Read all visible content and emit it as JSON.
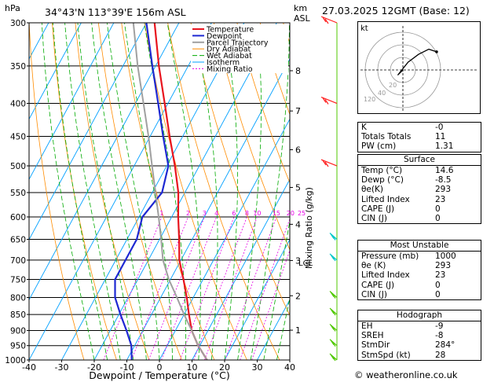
{
  "header": {
    "location": "34°43'N  113°39'E  156m  ASL",
    "datetime": "27.03.2025  12GMT  (Base: 12)",
    "units_left": "hPa",
    "units_km": "km",
    "units_asl": "ASL"
  },
  "legend": [
    "Temperature",
    "Dewpoint",
    "Parcel Trajectory",
    "Dry Adiabat",
    "Wet Adiabat",
    "Isotherm",
    "Mixing Ratio"
  ],
  "colors": {
    "temperature": "#e8141e",
    "dewpoint": "#1e28d2",
    "parcel": "#a0a0a0",
    "dry_adiabat": "#ff8c00",
    "wet_adiabat": "#00aa00",
    "isotherm": "#00a0ff",
    "mixing_ratio": "#e600e6",
    "wind_upper": "#ff2020",
    "wind_low": "#00c8c8",
    "wind_surface": "#50c800"
  },
  "chart_data": {
    "type": "line",
    "title": "Skew-T log-P sounding",
    "xlabel": "Dewpoint / Temperature (°C)",
    "ylabel": "hPa",
    "xlim": [
      -40,
      40
    ],
    "ylim": [
      1000,
      300
    ],
    "x_ticks": [
      -40,
      -30,
      -20,
      -10,
      0,
      10,
      20,
      30,
      40
    ],
    "pressure_levels": [
      300,
      350,
      400,
      450,
      500,
      550,
      600,
      650,
      700,
      750,
      800,
      850,
      900,
      950,
      1000
    ],
    "km_ticks": [
      {
        "label": "8",
        "p": 356
      },
      {
        "label": "7",
        "p": 411
      },
      {
        "label": "6",
        "p": 472
      },
      {
        "label": "5",
        "p": 540
      },
      {
        "label": "4",
        "p": 616
      },
      {
        "label": "3",
        "p": 701
      },
      {
        "label": "2",
        "p": 795
      },
      {
        "label": "1",
        "p": 899
      }
    ],
    "lcl_label": "LCL",
    "lcl_p": 706,
    "mixing_ratio_axis_label": "Mixing Ratio (g/kg)",
    "mixing_ratio_labels": [
      1,
      2,
      3,
      4,
      6,
      8,
      10,
      15,
      20,
      25
    ],
    "mixing_ratio_label_p": 600,
    "series": [
      {
        "name": "Temperature",
        "points": [
          [
            1000,
            14.6
          ],
          [
            950,
            9.5
          ],
          [
            900,
            5.0
          ],
          [
            850,
            1.5
          ],
          [
            800,
            -2.0
          ],
          [
            750,
            -6.0
          ],
          [
            700,
            -10.5
          ],
          [
            650,
            -14.0
          ],
          [
            600,
            -18.0
          ],
          [
            550,
            -22.0
          ],
          [
            500,
            -27.5
          ],
          [
            450,
            -34.0
          ],
          [
            400,
            -41.0
          ],
          [
            350,
            -49.0
          ],
          [
            300,
            -57.5
          ]
        ]
      },
      {
        "name": "Dewpoint",
        "points": [
          [
            1000,
            -8.5
          ],
          [
            950,
            -11.0
          ],
          [
            900,
            -15.0
          ],
          [
            850,
            -19.5
          ],
          [
            800,
            -24.0
          ],
          [
            750,
            -27.0
          ],
          [
            700,
            -27.0
          ],
          [
            650,
            -27.0
          ],
          [
            600,
            -29.0
          ],
          [
            550,
            -27.0
          ],
          [
            500,
            -29.5
          ],
          [
            450,
            -36.0
          ],
          [
            400,
            -43.0
          ],
          [
            350,
            -51.0
          ],
          [
            300,
            -60.0
          ]
        ]
      },
      {
        "name": "Parcel Trajectory",
        "points": [
          [
            1000,
            14.6
          ],
          [
            950,
            9.5
          ],
          [
            900,
            5.0
          ],
          [
            850,
            0.0
          ],
          [
            800,
            -5.0
          ],
          [
            750,
            -10.5
          ],
          [
            700,
            -15.5
          ],
          [
            650,
            -19.5
          ],
          [
            600,
            -24.0
          ],
          [
            550,
            -29.0
          ],
          [
            500,
            -34.5
          ],
          [
            450,
            -40.5
          ],
          [
            400,
            -47.5
          ],
          [
            350,
            -55.5
          ],
          [
            300,
            -64.0
          ]
        ]
      }
    ],
    "wind_barbs": [
      {
        "p": 1000,
        "group": "surface"
      },
      {
        "p": 950,
        "group": "surface"
      },
      {
        "p": 900,
        "group": "surface"
      },
      {
        "p": 850,
        "group": "surface"
      },
      {
        "p": 800,
        "group": "surface"
      },
      {
        "p": 700,
        "group": "low"
      },
      {
        "p": 650,
        "group": "low"
      },
      {
        "p": 500,
        "group": "upper"
      },
      {
        "p": 400,
        "group": "upper"
      },
      {
        "p": 300,
        "group": "upper"
      }
    ]
  },
  "hodograph": {
    "label": "kt",
    "ring_labels": [
      "20",
      "40"
    ],
    "extra_label": "120",
    "points": [
      [
        0,
        0
      ],
      [
        -2,
        -2
      ],
      [
        2,
        3
      ],
      [
        6,
        6
      ],
      [
        10,
        8
      ],
      [
        13,
        7
      ]
    ]
  },
  "indices": [
    {
      "label": "K",
      "value": "-0"
    },
    {
      "label": "Totals Totals",
      "value": "11"
    },
    {
      "label": "PW (cm)",
      "value": "1.31"
    }
  ],
  "surface": {
    "title": "Surface",
    "rows": [
      {
        "label": "Temp (°C)",
        "value": "14.6"
      },
      {
        "label": "Dewp (°C)",
        "value": "-8.5"
      },
      {
        "label": "θe(K)",
        "value": "293"
      },
      {
        "label": "Lifted Index",
        "value": "23"
      },
      {
        "label": "CAPE (J)",
        "value": "0"
      },
      {
        "label": "CIN (J)",
        "value": "0"
      }
    ]
  },
  "most_unstable": {
    "title": "Most Unstable",
    "rows": [
      {
        "label": "Pressure (mb)",
        "value": "1000"
      },
      {
        "label": "θe (K)",
        "value": "293"
      },
      {
        "label": "Lifted Index",
        "value": "23"
      },
      {
        "label": "CAPE (J)",
        "value": "0"
      },
      {
        "label": "CIN (J)",
        "value": "0"
      }
    ]
  },
  "hodograph_stats": {
    "title": "Hodograph",
    "rows": [
      {
        "label": "EH",
        "value": "-9"
      },
      {
        "label": "SREH",
        "value": "-8"
      },
      {
        "label": "StmDir",
        "value": "284°"
      },
      {
        "label": "StmSpd (kt)",
        "value": "28"
      }
    ]
  },
  "credit": "© weatheronline.co.uk"
}
